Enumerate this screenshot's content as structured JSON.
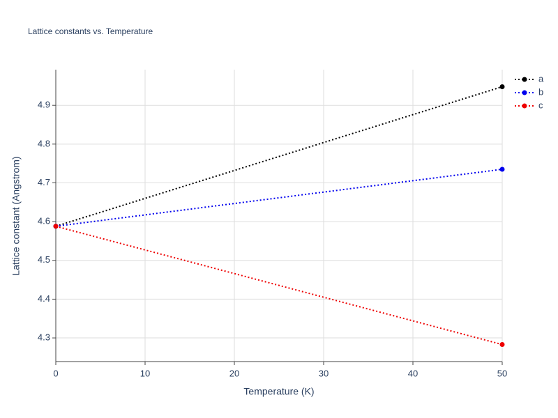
{
  "chart_data": {
    "type": "line",
    "title": "Lattice constants vs. Temperature",
    "x_label": "Temperature (K)",
    "y_label": "Lattice constant (Angstrom)",
    "x": [
      0,
      50
    ],
    "series": [
      {
        "name": "a",
        "color": "#000000",
        "values": [
          4.588,
          4.948
        ]
      },
      {
        "name": "b",
        "color": "#0000ee",
        "values": [
          4.588,
          4.735
        ]
      },
      {
        "name": "c",
        "color": "#ee0000",
        "values": [
          4.588,
          4.283
        ]
      }
    ],
    "xlim": [
      0,
      50
    ],
    "xticks": [
      0,
      10,
      20,
      30,
      40,
      50
    ],
    "ylim": [
      4.239,
      4.992
    ],
    "yticks": [
      4.3,
      4.4,
      4.5,
      4.6,
      4.7,
      4.8,
      4.9
    ],
    "grid": true,
    "legend": "top-right"
  }
}
